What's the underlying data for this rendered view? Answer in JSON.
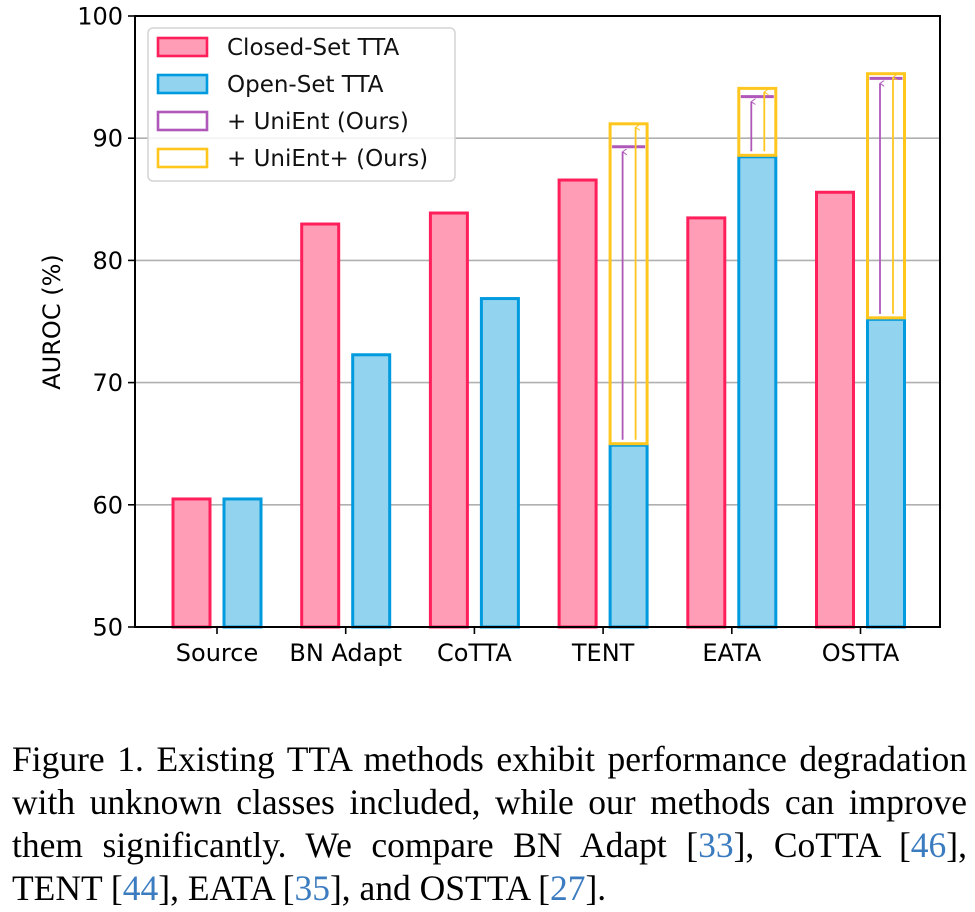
{
  "chart_data": {
    "type": "bar",
    "title": "",
    "xlabel": "",
    "ylabel": "AUROC (%)",
    "ylim": [
      50,
      100
    ],
    "yticks": [
      50,
      60,
      70,
      80,
      90,
      100
    ],
    "grid": "horizontal",
    "legend_position": "top-left",
    "categories": [
      "Source",
      "BN Adapt",
      "CoTTA",
      "TENT",
      "EATA",
      "OSTTA"
    ],
    "series": [
      {
        "name": "Closed-Set TTA",
        "fill": "#ff9db6",
        "edge": "#ff1f5b",
        "values": [
          60.6,
          83.1,
          84.0,
          86.7,
          83.6,
          85.7
        ]
      },
      {
        "name": "Open-Set TTA",
        "fill": "#92d3ef",
        "edge": "#009ade",
        "values": [
          60.6,
          72.4,
          77.0,
          65.0,
          88.6,
          75.3
        ]
      },
      {
        "name": "+ UniEnt (Ours)",
        "edge": "#af58ba",
        "values": [
          null,
          null,
          null,
          89.3,
          93.4,
          94.9
        ]
      },
      {
        "name": "+ UniEnt+ (Ours)",
        "edge": "#ffc61e",
        "values": [
          null,
          null,
          null,
          91.3,
          94.2,
          95.4
        ]
      }
    ]
  },
  "caption": {
    "parts": [
      {
        "text": "Figure 1. Existing TTA methods exhibit performance degradation with unknown classes included, while our methods can improve them significantly.  We compare BN Adapt [",
        "ref": false
      },
      {
        "text": "33",
        "ref": true
      },
      {
        "text": "], CoTTA [",
        "ref": false
      },
      {
        "text": "46",
        "ref": true
      },
      {
        "text": "], TENT [",
        "ref": false
      },
      {
        "text": "44",
        "ref": true
      },
      {
        "text": "], EATA [",
        "ref": false
      },
      {
        "text": "35",
        "ref": true
      },
      {
        "text": "], and OSTTA [",
        "ref": false
      },
      {
        "text": "27",
        "ref": true
      },
      {
        "text": "].",
        "ref": false
      }
    ]
  }
}
